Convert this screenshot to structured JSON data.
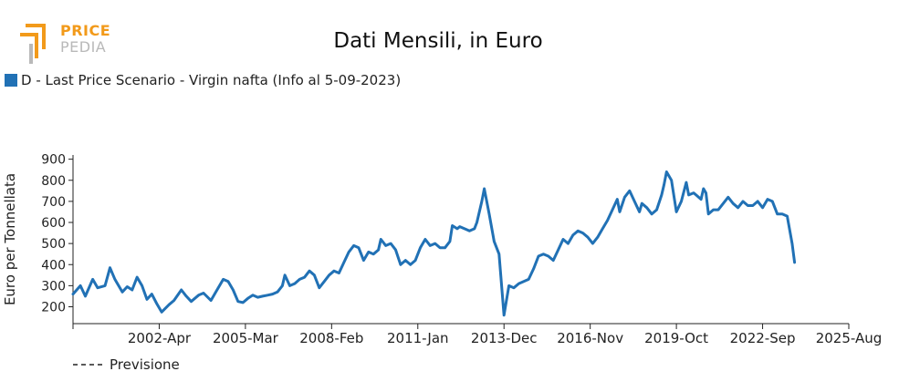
{
  "logo": {
    "line1": "PRICE",
    "line2": "PEDIA"
  },
  "chart_data": {
    "type": "line",
    "title": "Dati Mensili, in Euro",
    "ylabel": "Euro per Tonnellata",
    "xlabel": "",
    "ylim": [
      120,
      920
    ],
    "yticks": [
      200,
      300,
      400,
      500,
      600,
      700,
      800,
      900
    ],
    "xlim": [
      "1999-05",
      "2025-08"
    ],
    "xticks": [
      "2002-Apr",
      "2005-Mar",
      "2008-Feb",
      "2011-Jan",
      "2013-Dec",
      "2016-Nov",
      "2019-Oct",
      "2022-Sep",
      "2025-Aug"
    ],
    "xtick_dates": [
      "2002-04",
      "2005-03",
      "2008-02",
      "2011-01",
      "2013-12",
      "2016-11",
      "2019-10",
      "2022-09",
      "2025-08"
    ],
    "colors": {
      "series": "#2171b5",
      "axis": "#222222"
    },
    "series": [
      {
        "name": "D - Last Price Scenario - Virgin nafta (Info al 5-09-2023)",
        "style": "solid",
        "points": [
          [
            "1999-05",
            260
          ],
          [
            "1999-08",
            300
          ],
          [
            "1999-10",
            250
          ],
          [
            "2000-01",
            330
          ],
          [
            "2000-03",
            290
          ],
          [
            "2000-06",
            300
          ],
          [
            "2000-08",
            385
          ],
          [
            "2000-10",
            330
          ],
          [
            "2001-01",
            270
          ],
          [
            "2001-03",
            295
          ],
          [
            "2001-05",
            280
          ],
          [
            "2001-07",
            340
          ],
          [
            "2001-09",
            300
          ],
          [
            "2001-11",
            235
          ],
          [
            "2002-01",
            260
          ],
          [
            "2002-03",
            215
          ],
          [
            "2002-05",
            175
          ],
          [
            "2002-08",
            210
          ],
          [
            "2002-10",
            230
          ],
          [
            "2003-01",
            280
          ],
          [
            "2003-03",
            250
          ],
          [
            "2003-05",
            225
          ],
          [
            "2003-08",
            255
          ],
          [
            "2003-10",
            265
          ],
          [
            "2004-01",
            230
          ],
          [
            "2004-03",
            270
          ],
          [
            "2004-06",
            330
          ],
          [
            "2004-08",
            320
          ],
          [
            "2004-10",
            280
          ],
          [
            "2004-12",
            225
          ],
          [
            "2005-02",
            220
          ],
          [
            "2005-04",
            240
          ],
          [
            "2005-06",
            255
          ],
          [
            "2005-08",
            245
          ],
          [
            "2005-10",
            250
          ],
          [
            "2005-12",
            255
          ],
          [
            "2006-02",
            260
          ],
          [
            "2006-04",
            270
          ],
          [
            "2006-06",
            300
          ],
          [
            "2006-07",
            350
          ],
          [
            "2006-09",
            300
          ],
          [
            "2006-11",
            310
          ],
          [
            "2007-01",
            330
          ],
          [
            "2007-03",
            340
          ],
          [
            "2007-05",
            370
          ],
          [
            "2007-07",
            350
          ],
          [
            "2007-09",
            290
          ],
          [
            "2007-11",
            320
          ],
          [
            "2008-01",
            350
          ],
          [
            "2008-03",
            370
          ],
          [
            "2008-05",
            360
          ],
          [
            "2008-07",
            410
          ],
          [
            "2008-09",
            460
          ],
          [
            "2008-11",
            490
          ],
          [
            "2009-01",
            480
          ],
          [
            "2009-03",
            420
          ],
          [
            "2009-05",
            460
          ],
          [
            "2009-07",
            450
          ],
          [
            "2009-09",
            470
          ],
          [
            "2009-10",
            520
          ],
          [
            "2009-12",
            490
          ],
          [
            "2010-02",
            500
          ],
          [
            "2010-04",
            470
          ],
          [
            "2010-06",
            400
          ],
          [
            "2010-08",
            420
          ],
          [
            "2010-10",
            400
          ],
          [
            "2010-12",
            420
          ],
          [
            "2011-02",
            480
          ],
          [
            "2011-04",
            520
          ],
          [
            "2011-06",
            490
          ],
          [
            "2011-08",
            500
          ],
          [
            "2011-10",
            480
          ],
          [
            "2011-12",
            480
          ],
          [
            "2012-02",
            510
          ],
          [
            "2012-03",
            585
          ],
          [
            "2012-05",
            570
          ],
          [
            "2012-06",
            580
          ],
          [
            "2012-08",
            570
          ],
          [
            "2012-10",
            560
          ],
          [
            "2012-12",
            570
          ],
          [
            "2013-01",
            600
          ],
          [
            "2013-03",
            700
          ],
          [
            "2013-04",
            760
          ],
          [
            "2013-06",
            640
          ],
          [
            "2013-08",
            510
          ],
          [
            "2013-10",
            450
          ],
          [
            "2013-12",
            160
          ],
          [
            "2014-02",
            300
          ],
          [
            "2014-04",
            290
          ],
          [
            "2014-06",
            310
          ],
          [
            "2014-08",
            320
          ],
          [
            "2014-10",
            330
          ],
          [
            "2014-12",
            380
          ],
          [
            "2015-02",
            440
          ],
          [
            "2015-04",
            450
          ],
          [
            "2015-06",
            440
          ],
          [
            "2015-08",
            420
          ],
          [
            "2015-10",
            470
          ],
          [
            "2015-12",
            520
          ],
          [
            "2016-02",
            500
          ],
          [
            "2016-04",
            540
          ],
          [
            "2016-06",
            560
          ],
          [
            "2016-08",
            550
          ],
          [
            "2016-10",
            530
          ],
          [
            "2016-12",
            500
          ],
          [
            "2017-02",
            530
          ],
          [
            "2017-04",
            570
          ],
          [
            "2017-06",
            610
          ],
          [
            "2017-08",
            660
          ],
          [
            "2017-10",
            710
          ],
          [
            "2017-11",
            650
          ],
          [
            "2018-01",
            720
          ],
          [
            "2018-03",
            750
          ],
          [
            "2018-05",
            700
          ],
          [
            "2018-07",
            650
          ],
          [
            "2018-08",
            690
          ],
          [
            "2018-10",
            670
          ],
          [
            "2018-12",
            640
          ],
          [
            "2019-02",
            660
          ],
          [
            "2019-04",
            730
          ],
          [
            "2019-05",
            780
          ],
          [
            "2019-06",
            840
          ],
          [
            "2019-08",
            800
          ],
          [
            "2019-10",
            650
          ],
          [
            "2019-12",
            700
          ],
          [
            "2020-02",
            790
          ],
          [
            "2020-03",
            730
          ],
          [
            "2020-05",
            740
          ],
          [
            "2020-06",
            730
          ],
          [
            "2020-08",
            710
          ],
          [
            "2020-09",
            760
          ],
          [
            "2020-10",
            740
          ],
          [
            "2020-11",
            640
          ],
          [
            "2021-01",
            660
          ],
          [
            "2021-03",
            660
          ],
          [
            "2021-05",
            690
          ],
          [
            "2021-07",
            720
          ],
          [
            "2021-09",
            690
          ],
          [
            "2021-11",
            670
          ],
          [
            "2022-01",
            700
          ],
          [
            "2022-03",
            680
          ],
          [
            "2022-05",
            680
          ],
          [
            "2022-07",
            700
          ],
          [
            "2022-09",
            670
          ],
          [
            "2022-11",
            710
          ],
          [
            "2023-01",
            700
          ],
          [
            "2023-03",
            640
          ],
          [
            "2023-05",
            640
          ],
          [
            "2023-07",
            630
          ],
          [
            "2023-09",
            500
          ],
          [
            "2023-10",
            410
          ]
        ]
      },
      {
        "name": "Previsione",
        "style": "dashed",
        "points": []
      }
    ]
  },
  "legend": {
    "series_label": "D - Last Price Scenario - Virgin nafta (Info al 5-09-2023)",
    "forecast_label": "Previsione"
  }
}
